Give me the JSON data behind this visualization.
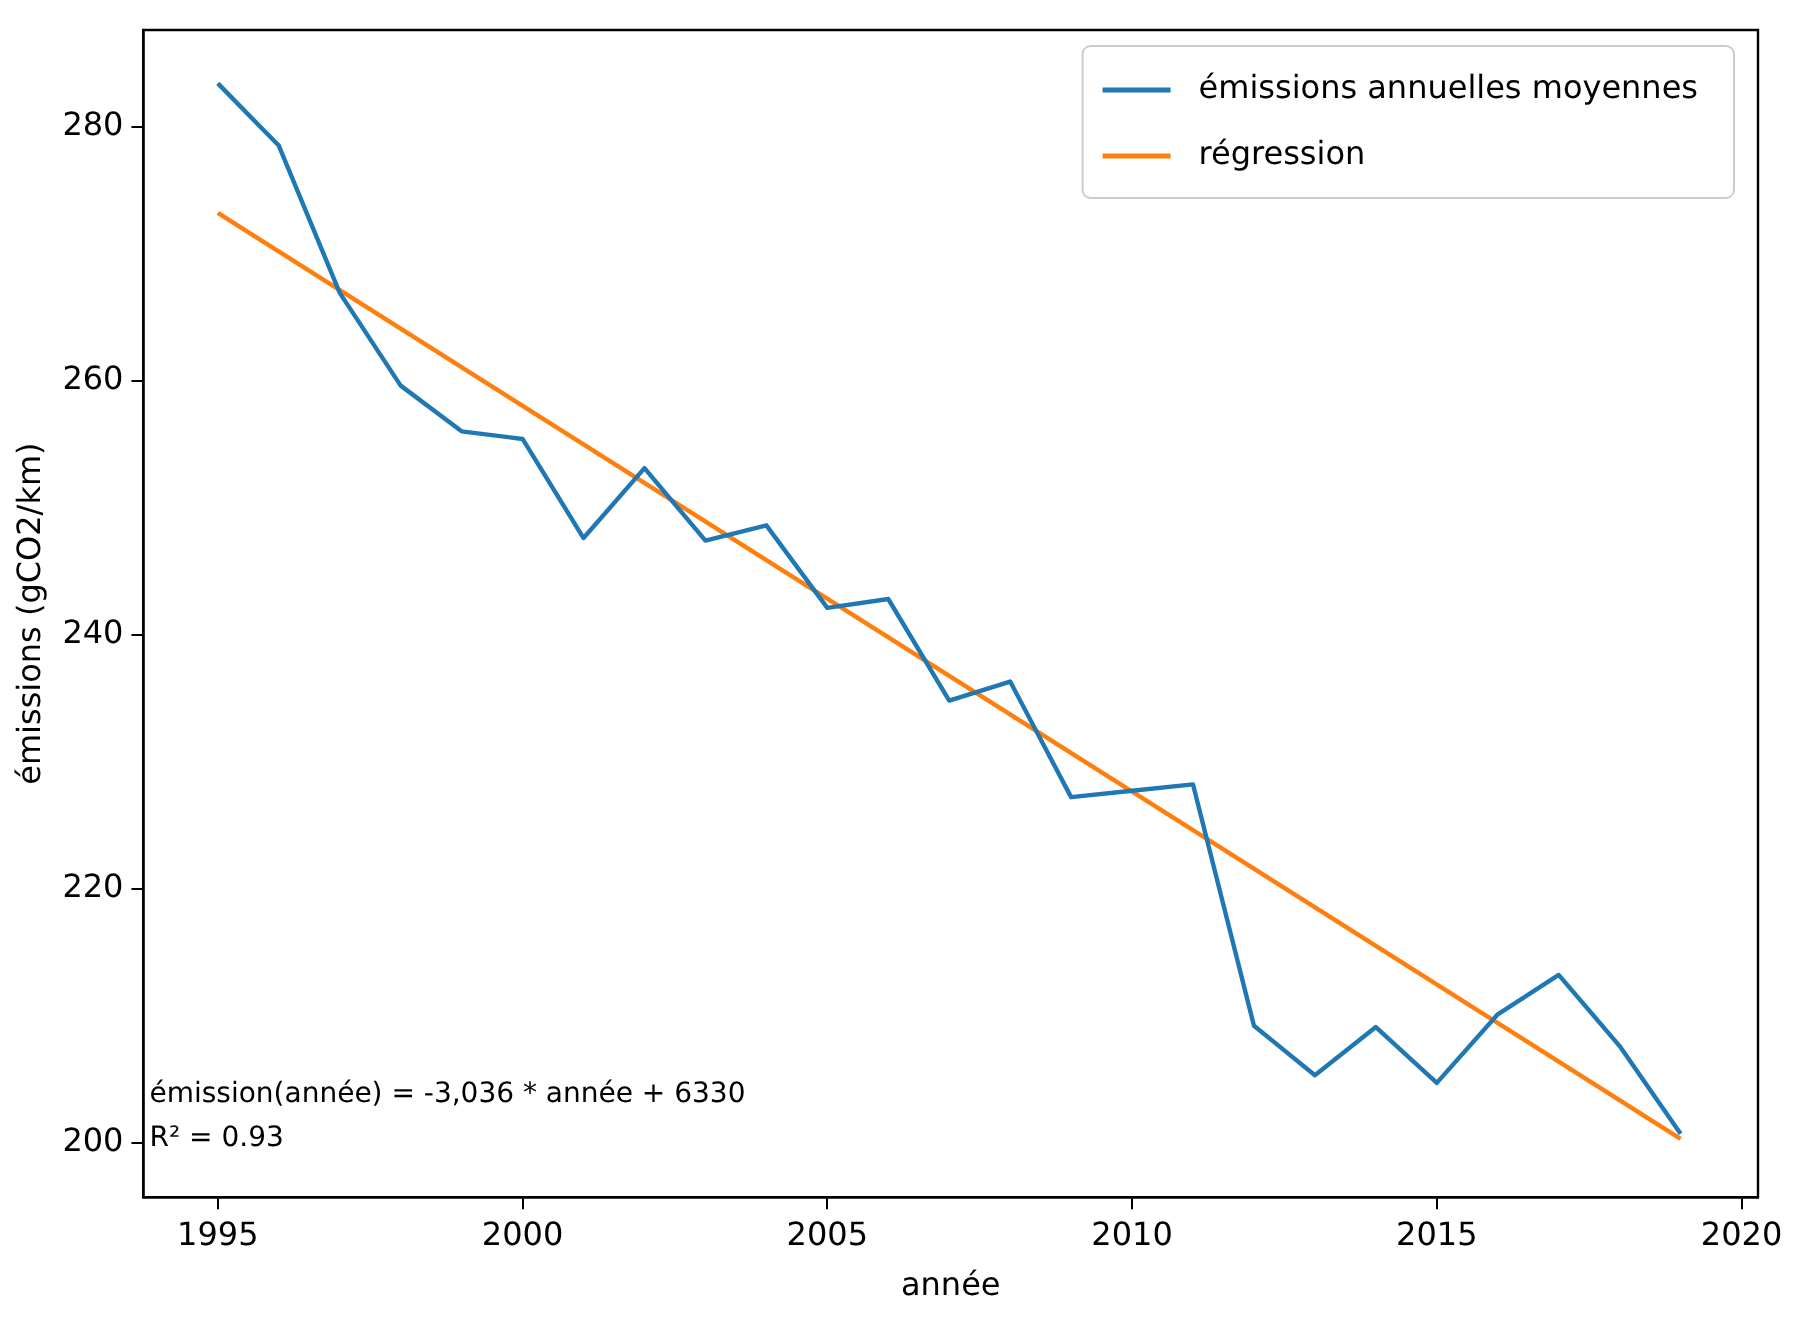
{
  "chart_data": {
    "type": "line",
    "xlabel": "année",
    "ylabel": "émissions (gCO2/km)",
    "xlim": [
      1993.78,
      2020.27
    ],
    "ylim": [
      195.7,
      287.6
    ],
    "xticks": [
      1995,
      2000,
      2005,
      2010,
      2015,
      2020
    ],
    "yticks": [
      200,
      220,
      240,
      260,
      280
    ],
    "grid": false,
    "legend": "top right",
    "marker": "none",
    "line_style": "solid",
    "series": [
      {
        "name": "émissions annuelles moyennes",
        "color": "#1f77b4",
        "x": [
          1995,
          1996,
          1997,
          1998,
          1999,
          2000,
          2001,
          2002,
          2003,
          2004,
          2005,
          2006,
          2007,
          2008,
          2009,
          2010,
          2011,
          2012,
          2013,
          2014,
          2015,
          2016,
          2017,
          2018,
          2019
        ],
        "values": [
          283.4,
          278.5,
          266.9,
          259.6,
          256.0,
          255.4,
          247.6,
          253.1,
          247.4,
          248.6,
          242.1,
          242.8,
          234.8,
          236.3,
          227.2,
          227.7,
          228.2,
          209.2,
          205.3,
          209.1,
          204.7,
          210.1,
          213.2,
          207.6,
          200.7
        ]
      },
      {
        "name": "régression",
        "color": "#ff7f0e",
        "x": [
          1995,
          2019
        ],
        "values": [
          273.2,
          200.3
        ]
      }
    ],
    "annotations": [
      "émission(année) = -3,036 * année + 6330",
      "R² = 0.93"
    ]
  }
}
